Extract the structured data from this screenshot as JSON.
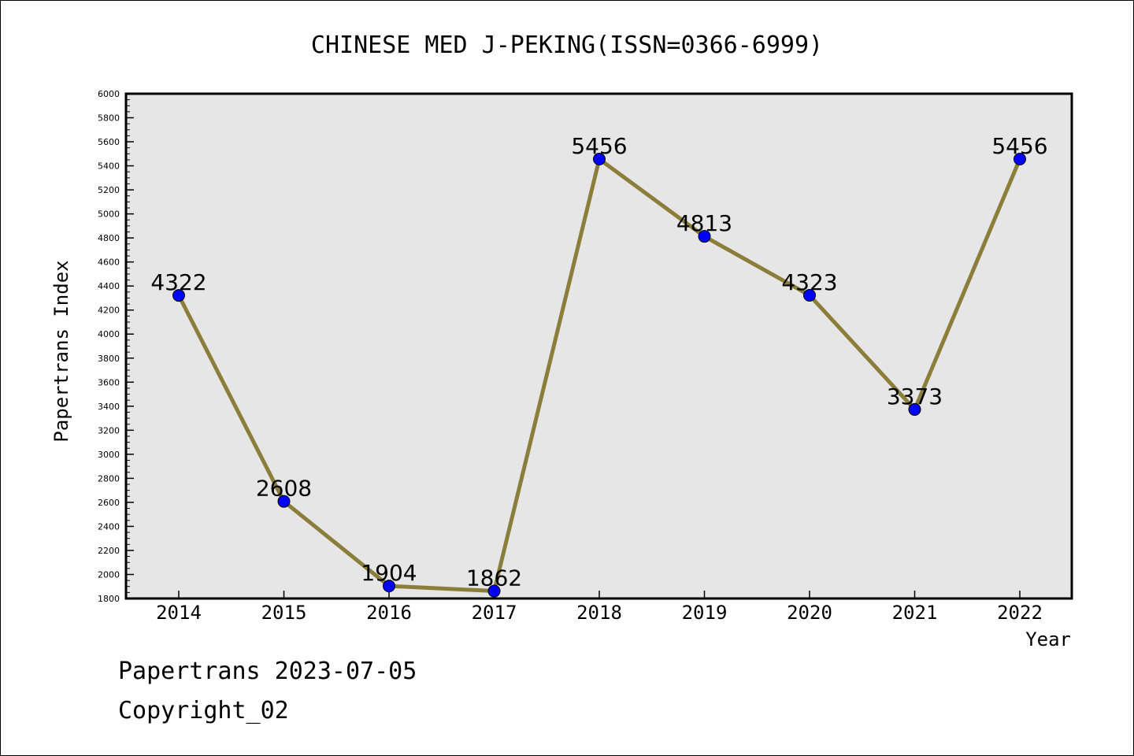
{
  "chart_data": {
    "type": "line",
    "title": "CHINESE MED J-PEKING(ISSN=0366-6999)",
    "xlabel": "Year",
    "ylabel": "Papertrans Index",
    "categories": [
      "2014",
      "2015",
      "2016",
      "2017",
      "2018",
      "2019",
      "2020",
      "2021",
      "2022"
    ],
    "values": [
      4322,
      2608,
      1904,
      1862,
      5456,
      4813,
      4323,
      3373,
      5456
    ],
    "ylim": [
      1800,
      6000
    ],
    "yticks": [
      1800,
      2000,
      2200,
      2400,
      2600,
      2800,
      3000,
      3200,
      3400,
      3600,
      3800,
      4000,
      4200,
      4400,
      4600,
      4800,
      5000,
      5200,
      5400,
      5600,
      5800,
      6000
    ],
    "grid": false,
    "legend": "none",
    "colors": {
      "line": "#8B7D3A",
      "marker": "#0000FF",
      "plot_background": "#E6E6E6",
      "axis": "#000000"
    }
  },
  "footer": {
    "line1": "Papertrans 2023-07-05",
    "line2": "Copyright_02"
  }
}
